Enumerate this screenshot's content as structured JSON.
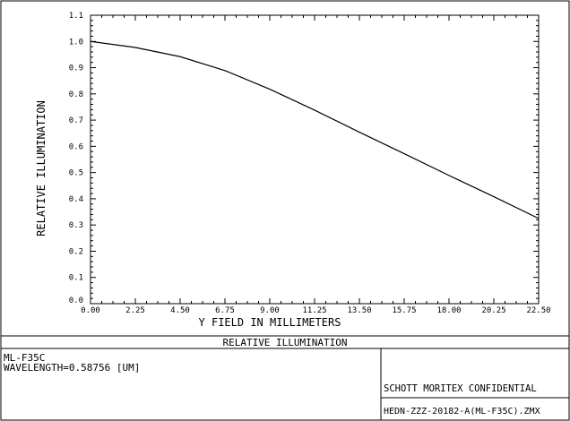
{
  "chart_data": {
    "type": "line",
    "title": "",
    "xlabel": "Y FIELD IN MILLIMETERS",
    "ylabel": "RELATIVE ILLUMINATION",
    "xlim": [
      0,
      22.5
    ],
    "ylim": [
      0,
      1.1
    ],
    "grid": false,
    "x_ticks": [
      "0.00",
      "2.25",
      "4.50",
      "6.75",
      "9.00",
      "11.25",
      "13.50",
      "15.75",
      "18.00",
      "20.25",
      "22.50"
    ],
    "y_ticks": [
      "0.0",
      "0.1",
      "0.2",
      "0.3",
      "0.4",
      "0.5",
      "0.6",
      "0.7",
      "0.8",
      "0.9",
      "1.0",
      "1.1"
    ],
    "series": [
      {
        "x": [
          0,
          2.25,
          4.5,
          6.75,
          9.0,
          11.25,
          13.5,
          15.75,
          18.0,
          20.25,
          22.5
        ],
        "y": [
          1.0,
          0.977,
          0.942,
          0.889,
          0.818,
          0.738,
          0.654,
          0.572,
          0.489,
          0.408,
          0.325
        ]
      }
    ]
  },
  "info": {
    "plot_title": "RELATIVE ILLUMINATION",
    "lens": "ML-F35C",
    "wavelength": "WAVELENGTH=0.58756 [UM]",
    "confidential": "SCHOTT MORITEX CONFIDENTIAL",
    "file": "HEDN-ZZZ-20182-A(ML-F35C).ZMX"
  }
}
